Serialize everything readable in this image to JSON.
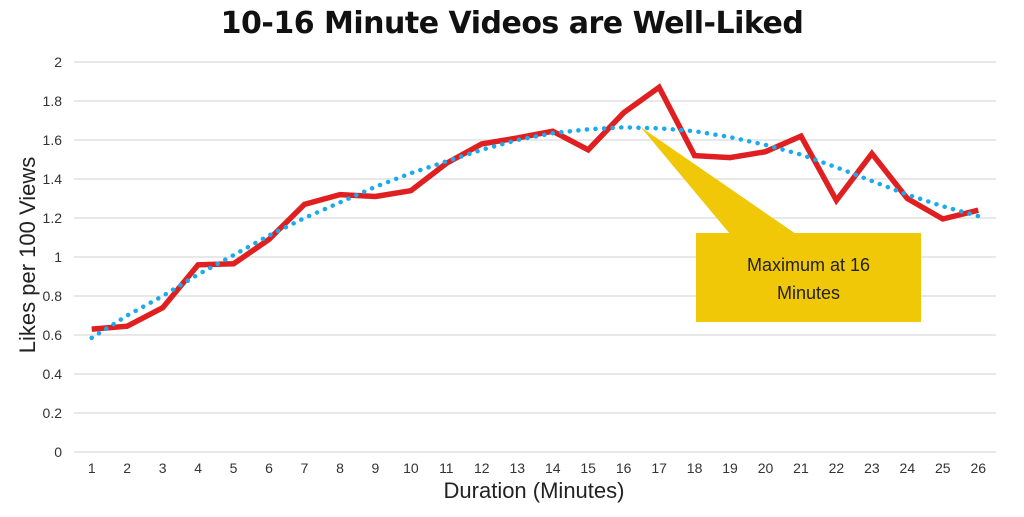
{
  "chart_data": {
    "type": "line",
    "title": "10-16 Minute Videos are Well-Liked",
    "xlabel": "Duration (Minutes)",
    "ylabel": "Likes per 100 Views",
    "categories": [
      "1",
      "2",
      "3",
      "4",
      "5",
      "6",
      "7",
      "8",
      "9",
      "10",
      "11",
      "12",
      "13",
      "14",
      "15",
      "16",
      "17",
      "18",
      "19",
      "20",
      "21",
      "22",
      "23",
      "24",
      "25",
      "26"
    ],
    "series": [
      {
        "name": "Likes per 100 Views",
        "color": "#E02020",
        "style": "solid",
        "values": [
          0.63,
          0.645,
          0.74,
          0.96,
          0.965,
          1.09,
          1.27,
          1.32,
          1.31,
          1.34,
          1.48,
          1.58,
          1.61,
          1.645,
          1.55,
          1.74,
          1.87,
          1.52,
          1.51,
          1.54,
          1.62,
          1.29,
          1.53,
          1.3,
          1.195,
          1.24
        ]
      },
      {
        "name": "Trendline (polynomial)",
        "color": "#1AABEE",
        "style": "dotted",
        "values": [
          0.585,
          0.7,
          0.8,
          0.91,
          1.01,
          1.11,
          1.2,
          1.28,
          1.36,
          1.43,
          1.49,
          1.55,
          1.6,
          1.635,
          1.655,
          1.665,
          1.66,
          1.645,
          1.615,
          1.575,
          1.525,
          1.46,
          1.39,
          1.32,
          1.26,
          1.21
        ]
      }
    ],
    "ylim": [
      0,
      2
    ],
    "yticks": [
      "0",
      "0.2",
      "0.4",
      "0.6",
      "0.8",
      "1",
      "1.2",
      "1.4",
      "1.6",
      "1.8",
      "2"
    ],
    "grid": true,
    "legend": "none",
    "annotations": [
      {
        "text": "Maximum at 16 Minutes",
        "line1": "Maximum at 16",
        "line2": "Minutes",
        "points_to_x": 16,
        "color": "#F0C808"
      }
    ]
  },
  "colors": {
    "grid": "#D9D9D9",
    "axis_text": "#333333",
    "callout": "#F0C808"
  }
}
